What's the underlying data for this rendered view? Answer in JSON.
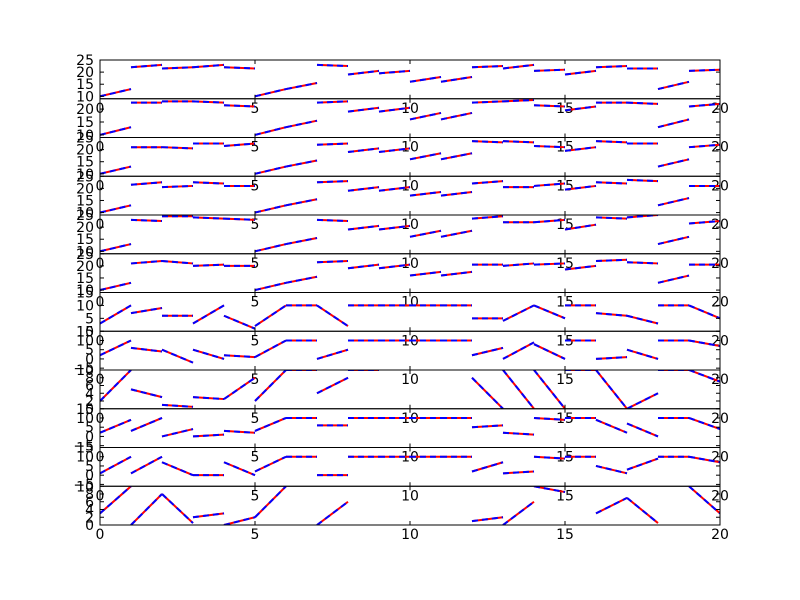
{
  "figure": {
    "background": "#ffffff",
    "line_color_red": "#ff0000",
    "line_color_blue": "#0000ff",
    "line_style": "red solid segments overlaid with blue dashed segments"
  },
  "chart_data": [
    {
      "type": "line",
      "xlim": [
        0,
        20
      ],
      "ylim": [
        9,
        25
      ],
      "xticks": [
        "0",
        "5",
        "10",
        "15",
        "20"
      ],
      "yticks": [
        "10",
        "15",
        "20",
        "25"
      ],
      "series": [
        {
          "x": [
            0,
            1,
            1,
            2,
            2,
            3,
            3,
            4,
            4,
            5,
            5,
            6,
            6,
            7,
            7,
            8,
            8,
            9,
            9,
            10,
            10,
            11,
            11,
            12,
            12,
            13,
            13,
            14,
            14,
            15,
            15,
            16,
            16,
            17,
            17,
            18,
            18,
            19,
            19,
            20
          ],
          "y": [
            10,
            13,
            22,
            23,
            21.5,
            22,
            22,
            23,
            22,
            21.5,
            10,
            13,
            13,
            15.5,
            23,
            22.5,
            19,
            20.5,
            19.5,
            20.5,
            16,
            18,
            16,
            18,
            22,
            22.5,
            21.5,
            23,
            20.5,
            21,
            19,
            20.5,
            22,
            22.5,
            21.5,
            21.5,
            13,
            16,
            20.5,
            21
          ]
        }
      ]
    },
    {
      "type": "line",
      "xlim": [
        0,
        20
      ],
      "ylim": [
        9,
        24
      ],
      "xticks": [
        "0",
        "5",
        "10",
        "15",
        "20"
      ],
      "yticks": [
        "10",
        "15",
        "20"
      ],
      "series": [
        {
          "x": [
            0,
            1,
            1,
            2,
            2,
            3,
            3,
            4,
            4,
            5,
            5,
            6,
            6,
            7,
            7,
            8,
            8,
            9,
            9,
            10,
            10,
            11,
            11,
            12,
            12,
            13,
            13,
            14,
            14,
            15,
            15,
            16,
            16,
            17,
            17,
            18,
            18,
            19,
            19,
            20
          ],
          "y": [
            10,
            13,
            22.5,
            22.5,
            23,
            23,
            23,
            22.5,
            21.5,
            21,
            10,
            13,
            13,
            15.5,
            22.5,
            23,
            19,
            20.5,
            19,
            20.5,
            16,
            18.5,
            16,
            18.5,
            22.5,
            23,
            23,
            23.5,
            21.5,
            21,
            19.5,
            21,
            22.5,
            22.5,
            22.5,
            22,
            13,
            16,
            21,
            22
          ]
        }
      ]
    },
    {
      "type": "line",
      "xlim": [
        0,
        20
      ],
      "ylim": [
        9,
        25
      ],
      "xticks": [
        "0",
        "5",
        "10",
        "15",
        "20"
      ],
      "yticks": [
        "10",
        "15",
        "20",
        "25"
      ],
      "series": [
        {
          "x": [
            0,
            1,
            1,
            2,
            2,
            3,
            3,
            4,
            4,
            5,
            5,
            6,
            6,
            7,
            7,
            8,
            8,
            9,
            9,
            10,
            10,
            11,
            11,
            12,
            12,
            13,
            13,
            14,
            14,
            15,
            15,
            16,
            16,
            17,
            17,
            18,
            18,
            19,
            19,
            20
          ],
          "y": [
            10,
            13,
            21,
            21,
            21,
            20.5,
            22.5,
            22.5,
            21.5,
            22.5,
            10,
            13,
            13,
            15.5,
            22,
            22.5,
            19,
            20.5,
            19,
            20.5,
            16,
            18.5,
            16,
            18.5,
            23.5,
            23,
            23.5,
            23,
            21.5,
            21,
            19.5,
            21,
            23.5,
            23,
            22.5,
            22.5,
            13,
            16,
            21,
            22
          ]
        }
      ]
    },
    {
      "type": "line",
      "xlim": [
        0,
        20
      ],
      "ylim": [
        9,
        25
      ],
      "xticks": [
        "0",
        "5",
        "10",
        "15",
        "20"
      ],
      "yticks": [
        "10",
        "15",
        "20",
        "25"
      ],
      "series": [
        {
          "x": [
            0,
            1,
            1,
            2,
            2,
            3,
            3,
            4,
            4,
            5,
            5,
            6,
            6,
            7,
            7,
            8,
            8,
            9,
            9,
            10,
            10,
            11,
            11,
            12,
            12,
            13,
            13,
            14,
            14,
            15,
            15,
            16,
            16,
            17,
            17,
            18,
            18,
            19,
            19,
            20
          ],
          "y": [
            10,
            13,
            21.5,
            22.5,
            20.5,
            21,
            22.5,
            22,
            21,
            21,
            10,
            13,
            13,
            15.5,
            22.5,
            23,
            19,
            20.5,
            19,
            20.5,
            17,
            18.5,
            17,
            18.5,
            22,
            23,
            20.5,
            20.5,
            21,
            22,
            19.5,
            21,
            22.5,
            22,
            23.5,
            23,
            13,
            16,
            21,
            21
          ]
        }
      ]
    },
    {
      "type": "line",
      "xlim": [
        0,
        20
      ],
      "ylim": [
        9,
        25
      ],
      "xticks": [
        "0",
        "5",
        "10",
        "15",
        "20"
      ],
      "yticks": [
        "10",
        "15",
        "20",
        "25"
      ],
      "series": [
        {
          "x": [
            0,
            1,
            1,
            2,
            2,
            3,
            3,
            4,
            4,
            5,
            5,
            6,
            6,
            7,
            7,
            8,
            8,
            9,
            9,
            10,
            10,
            11,
            11,
            12,
            12,
            13,
            13,
            14,
            14,
            15,
            15,
            16,
            16,
            17,
            17,
            18,
            18,
            19,
            19,
            20
          ],
          "y": [
            10,
            13,
            23,
            22.5,
            24.5,
            24.5,
            24,
            23.5,
            23.5,
            23,
            10,
            13,
            13,
            15.5,
            23,
            22.5,
            19,
            20.5,
            19,
            20.5,
            16,
            18.5,
            16,
            18.5,
            23.5,
            24.5,
            22,
            22,
            22,
            23,
            19,
            21,
            24,
            23.5,
            24,
            25,
            13,
            16,
            21.5,
            22.5
          ]
        }
      ]
    },
    {
      "type": "line",
      "xlim": [
        0,
        20
      ],
      "ylim": [
        9,
        25
      ],
      "xticks": [
        "0",
        "5",
        "10",
        "15",
        "20"
      ],
      "yticks": [
        "10",
        "15",
        "20",
        "25"
      ],
      "series": [
        {
          "x": [
            0,
            1,
            1,
            2,
            2,
            3,
            3,
            4,
            4,
            5,
            5,
            6,
            6,
            7,
            7,
            8,
            8,
            9,
            9,
            10,
            10,
            11,
            11,
            12,
            12,
            13,
            13,
            14,
            14,
            15,
            15,
            16,
            16,
            17,
            17,
            18,
            18,
            19,
            19,
            20
          ],
          "y": [
            10,
            13,
            21,
            22,
            22,
            21,
            20,
            20.5,
            20,
            20,
            10,
            13,
            13,
            15.5,
            21.5,
            22,
            19,
            20.5,
            19,
            20.5,
            16,
            17.5,
            16,
            17.5,
            20.5,
            20.5,
            20,
            21,
            20.5,
            21,
            18.5,
            20,
            22,
            22.5,
            21.5,
            21,
            13,
            16,
            20.5,
            20.5
          ]
        }
      ]
    },
    {
      "type": "line",
      "xlim": [
        0,
        20
      ],
      "ylim": [
        0,
        15
      ],
      "xticks": [
        "0",
        "5",
        "10",
        "15",
        "20"
      ],
      "yticks": [
        "0",
        "5",
        "10",
        "15"
      ],
      "series": [
        {
          "x": [
            0,
            1,
            1,
            2,
            2,
            3,
            3,
            4,
            4,
            5,
            5,
            6,
            6,
            7,
            7,
            8,
            8,
            9,
            9,
            10,
            10,
            11,
            11,
            12,
            12,
            13,
            13,
            14,
            14,
            15,
            15,
            16,
            16,
            17,
            17,
            18,
            18,
            19,
            19,
            20
          ],
          "y": [
            3,
            10,
            7,
            9,
            6,
            6,
            3,
            10,
            6,
            1,
            2,
            10,
            10,
            10,
            10,
            2,
            10,
            10,
            10,
            10,
            10,
            10,
            10,
            10,
            5,
            5,
            4,
            10,
            10,
            5,
            10,
            10,
            7,
            6,
            6,
            3,
            10,
            10,
            10,
            5
          ]
        }
      ]
    },
    {
      "type": "line",
      "xlim": [
        0,
        20
      ],
      "ylim": [
        -6,
        15
      ],
      "xticks": [
        "0",
        "5",
        "10",
        "15",
        "20"
      ],
      "yticks": [
        "−5",
        "0",
        "5",
        "10",
        "15"
      ],
      "series": [
        {
          "x": [
            0,
            1,
            1,
            2,
            2,
            3,
            3,
            4,
            4,
            5,
            5,
            6,
            6,
            7,
            7,
            8,
            8,
            9,
            9,
            10,
            10,
            11,
            11,
            12,
            12,
            13,
            13,
            14,
            14,
            15,
            15,
            16,
            16,
            17,
            17,
            18,
            18,
            19,
            19,
            20
          ],
          "y": [
            2,
            10,
            6,
            4,
            5,
            -2,
            5,
            0,
            2,
            1,
            1,
            10,
            10,
            10,
            0,
            5,
            10,
            10,
            10,
            10,
            10,
            10,
            10,
            10,
            2,
            6,
            0,
            9,
            8,
            0,
            10,
            10,
            0,
            1,
            5,
            0,
            10,
            10,
            10,
            7
          ]
        }
      ]
    },
    {
      "type": "line",
      "xlim": [
        0,
        20
      ],
      "ylim": [
        0,
        10
      ],
      "xticks": [
        "0",
        "5",
        "10",
        "15",
        "20"
      ],
      "yticks": [
        "0",
        "2",
        "4",
        "6",
        "8",
        "10"
      ],
      "series": [
        {
          "x": [
            0,
            1,
            1,
            2,
            2,
            3,
            3,
            4,
            4,
            5,
            5,
            6,
            6,
            7,
            7,
            8,
            8,
            9,
            12,
            13,
            13,
            14,
            14,
            15,
            15,
            16,
            16,
            17,
            17,
            18,
            18,
            19,
            19,
            20
          ],
          "y": [
            2,
            10,
            5,
            3,
            1,
            0.5,
            3,
            2.5,
            2.5,
            8,
            2,
            10,
            10,
            10,
            4,
            8,
            10,
            10,
            8,
            0,
            10,
            0,
            10,
            0,
            10,
            10,
            10,
            0,
            0,
            4,
            10,
            10,
            10,
            7
          ]
        }
      ]
    },
    {
      "type": "line",
      "xlim": [
        0,
        20
      ],
      "ylim": [
        -6,
        15
      ],
      "xticks": [
        "0",
        "5",
        "10",
        "15",
        "20"
      ],
      "yticks": [
        "−5",
        "0",
        "5",
        "10",
        "15"
      ],
      "series": [
        {
          "x": [
            0,
            1,
            1,
            2,
            2,
            3,
            3,
            4,
            4,
            5,
            5,
            6,
            6,
            7,
            7,
            8,
            8,
            9,
            9,
            10,
            10,
            11,
            11,
            12,
            12,
            13,
            13,
            14,
            14,
            15,
            15,
            16,
            16,
            17,
            17,
            18,
            18,
            19,
            19,
            20
          ],
          "y": [
            2,
            9,
            3,
            10,
            0,
            4,
            0,
            1,
            3,
            2,
            3,
            10,
            10,
            10,
            6,
            6,
            10,
            10,
            10,
            10,
            10,
            10,
            10,
            10,
            5,
            6,
            2,
            1,
            10,
            9,
            10,
            10,
            9,
            2,
            7,
            0,
            10,
            10,
            10,
            4
          ]
        }
      ]
    },
    {
      "type": "line",
      "xlim": [
        0,
        20
      ],
      "ylim": [
        -6,
        15
      ],
      "xticks": [
        "0",
        "5",
        "10",
        "15",
        "20"
      ],
      "yticks": [
        "−5",
        "0",
        "5",
        "10",
        "15"
      ],
      "series": [
        {
          "x": [
            0,
            1,
            1,
            2,
            2,
            3,
            3,
            4,
            4,
            5,
            5,
            6,
            6,
            7,
            7,
            8,
            8,
            9,
            9,
            10,
            10,
            11,
            11,
            12,
            12,
            13,
            13,
            14,
            14,
            15,
            15,
            16,
            16,
            17,
            17,
            18,
            18,
            19,
            19,
            20
          ],
          "y": [
            1,
            10,
            1,
            10,
            7,
            0,
            0,
            0,
            7,
            0,
            2,
            10,
            10,
            10,
            0,
            0,
            10,
            10,
            10,
            10,
            10,
            10,
            10,
            10,
            2,
            7,
            1,
            2,
            10,
            9,
            10,
            10,
            5,
            1,
            3,
            9,
            10,
            10,
            10,
            7
          ]
        }
      ]
    },
    {
      "type": "line",
      "xlim": [
        0,
        20
      ],
      "ylim": [
        0,
        10
      ],
      "xticks": [
        "0",
        "5",
        "10",
        "15",
        "20"
      ],
      "yticks": [
        "0",
        "2",
        "4",
        "6",
        "8",
        "10"
      ],
      "series": [
        {
          "x": [
            0,
            1,
            1,
            2,
            2,
            3,
            3,
            4,
            4,
            5,
            5,
            6,
            7,
            8,
            12,
            13,
            13,
            14,
            14,
            15,
            16,
            17,
            17,
            18,
            19,
            20
          ],
          "y": [
            3,
            10,
            0,
            8,
            8,
            0.5,
            2,
            3,
            0,
            2,
            2,
            10,
            0,
            6,
            1,
            2,
            0,
            6,
            10,
            8.5,
            3,
            7,
            7,
            0.5,
            10,
            3
          ]
        }
      ]
    }
  ]
}
